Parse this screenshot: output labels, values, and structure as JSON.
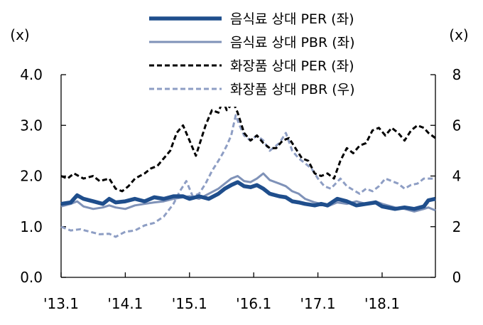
{
  "chart_data": {
    "type": "line",
    "left_axis": {
      "unit_label": "(x)",
      "ylim": [
        0,
        4
      ],
      "ticks": [
        "0.0",
        "1.0",
        "2.0",
        "3.0",
        "4.0"
      ]
    },
    "right_axis": {
      "unit_label": "(x)",
      "ylim": [
        0,
        8
      ],
      "ticks": [
        "0",
        "2",
        "4",
        "6",
        "8"
      ]
    },
    "x_axis": {
      "ticks": [
        {
          "label": "'13.1",
          "t": 2013.0
        },
        {
          "label": "'14.1",
          "t": 2014.0
        },
        {
          "label": "'15.1",
          "t": 2015.0
        },
        {
          "label": "'16.1",
          "t": 2016.0
        },
        {
          "label": "'17.1",
          "t": 2017.0
        },
        {
          "label": "'18.1",
          "t": 2018.0
        }
      ],
      "xlim": [
        2013.0,
        2018.83
      ]
    },
    "grid": false,
    "legend_position": "top-right",
    "series": [
      {
        "name": "음식료 상대 PER (좌)",
        "axis": "left",
        "color": "#1f4e8c",
        "style": "solid-thick",
        "points": [
          [
            2013.0,
            1.45
          ],
          [
            2013.15,
            1.48
          ],
          [
            2013.25,
            1.62
          ],
          [
            2013.35,
            1.55
          ],
          [
            2013.5,
            1.5
          ],
          [
            2013.65,
            1.45
          ],
          [
            2013.75,
            1.55
          ],
          [
            2013.85,
            1.48
          ],
          [
            2014.0,
            1.5
          ],
          [
            2014.15,
            1.55
          ],
          [
            2014.3,
            1.5
          ],
          [
            2014.45,
            1.58
          ],
          [
            2014.6,
            1.55
          ],
          [
            2014.75,
            1.6
          ],
          [
            2014.9,
            1.6
          ],
          [
            2015.0,
            1.55
          ],
          [
            2015.15,
            1.6
          ],
          [
            2015.3,
            1.55
          ],
          [
            2015.45,
            1.65
          ],
          [
            2015.55,
            1.75
          ],
          [
            2015.65,
            1.82
          ],
          [
            2015.75,
            1.88
          ],
          [
            2015.85,
            1.8
          ],
          [
            2015.95,
            1.78
          ],
          [
            2016.05,
            1.82
          ],
          [
            2016.15,
            1.75
          ],
          [
            2016.25,
            1.65
          ],
          [
            2016.4,
            1.6
          ],
          [
            2016.5,
            1.58
          ],
          [
            2016.6,
            1.5
          ],
          [
            2016.7,
            1.48
          ],
          [
            2016.8,
            1.45
          ],
          [
            2016.95,
            1.42
          ],
          [
            2017.05,
            1.45
          ],
          [
            2017.15,
            1.42
          ],
          [
            2017.3,
            1.55
          ],
          [
            2017.45,
            1.5
          ],
          [
            2017.6,
            1.42
          ],
          [
            2017.75,
            1.45
          ],
          [
            2017.9,
            1.48
          ],
          [
            2018.0,
            1.4
          ],
          [
            2018.2,
            1.35
          ],
          [
            2018.35,
            1.38
          ],
          [
            2018.5,
            1.35
          ],
          [
            2018.65,
            1.4
          ],
          [
            2018.72,
            1.52
          ],
          [
            2018.83,
            1.55
          ]
        ]
      },
      {
        "name": "음식료 상대 PBR (좌)",
        "axis": "left",
        "color": "#7f92b8",
        "style": "solid",
        "points": [
          [
            2013.0,
            1.4
          ],
          [
            2013.15,
            1.45
          ],
          [
            2013.25,
            1.5
          ],
          [
            2013.35,
            1.4
          ],
          [
            2013.5,
            1.35
          ],
          [
            2013.65,
            1.38
          ],
          [
            2013.75,
            1.42
          ],
          [
            2013.85,
            1.38
          ],
          [
            2014.0,
            1.35
          ],
          [
            2014.15,
            1.42
          ],
          [
            2014.3,
            1.45
          ],
          [
            2014.45,
            1.48
          ],
          [
            2014.6,
            1.5
          ],
          [
            2014.75,
            1.55
          ],
          [
            2014.9,
            1.58
          ],
          [
            2015.0,
            1.6
          ],
          [
            2015.15,
            1.55
          ],
          [
            2015.3,
            1.65
          ],
          [
            2015.45,
            1.75
          ],
          [
            2015.55,
            1.85
          ],
          [
            2015.65,
            1.95
          ],
          [
            2015.75,
            2.0
          ],
          [
            2015.85,
            1.9
          ],
          [
            2015.95,
            1.88
          ],
          [
            2016.05,
            1.95
          ],
          [
            2016.15,
            2.05
          ],
          [
            2016.25,
            1.92
          ],
          [
            2016.4,
            1.85
          ],
          [
            2016.5,
            1.8
          ],
          [
            2016.6,
            1.7
          ],
          [
            2016.7,
            1.65
          ],
          [
            2016.8,
            1.55
          ],
          [
            2016.95,
            1.48
          ],
          [
            2017.05,
            1.45
          ],
          [
            2017.15,
            1.4
          ],
          [
            2017.3,
            1.48
          ],
          [
            2017.45,
            1.45
          ],
          [
            2017.6,
            1.5
          ],
          [
            2017.75,
            1.45
          ],
          [
            2017.9,
            1.5
          ],
          [
            2018.0,
            1.45
          ],
          [
            2018.2,
            1.38
          ],
          [
            2018.35,
            1.35
          ],
          [
            2018.5,
            1.3
          ],
          [
            2018.65,
            1.35
          ],
          [
            2018.72,
            1.38
          ],
          [
            2018.83,
            1.32
          ]
        ]
      },
      {
        "name": "화장품 상대 PER (좌)",
        "axis": "left",
        "color": "#000000",
        "style": "dashed",
        "points": [
          [
            2013.0,
            2.0
          ],
          [
            2013.1,
            1.95
          ],
          [
            2013.2,
            2.05
          ],
          [
            2013.35,
            1.95
          ],
          [
            2013.5,
            2.0
          ],
          [
            2013.6,
            1.9
          ],
          [
            2013.75,
            1.95
          ],
          [
            2013.85,
            1.75
          ],
          [
            2013.95,
            1.7
          ],
          [
            2014.05,
            1.8
          ],
          [
            2014.15,
            1.95
          ],
          [
            2014.3,
            2.05
          ],
          [
            2014.4,
            2.15
          ],
          [
            2014.5,
            2.2
          ],
          [
            2014.6,
            2.35
          ],
          [
            2014.7,
            2.5
          ],
          [
            2014.8,
            2.85
          ],
          [
            2014.9,
            3.0
          ],
          [
            2015.0,
            2.7
          ],
          [
            2015.1,
            2.4
          ],
          [
            2015.15,
            2.6
          ],
          [
            2015.25,
            3.0
          ],
          [
            2015.35,
            3.3
          ],
          [
            2015.45,
            3.25
          ],
          [
            2015.52,
            3.5
          ],
          [
            2015.58,
            3.3
          ],
          [
            2015.68,
            3.45
          ],
          [
            2015.75,
            3.25
          ],
          [
            2015.85,
            2.85
          ],
          [
            2015.95,
            2.7
          ],
          [
            2016.05,
            2.8
          ],
          [
            2016.15,
            2.65
          ],
          [
            2016.25,
            2.55
          ],
          [
            2016.35,
            2.55
          ],
          [
            2016.45,
            2.7
          ],
          [
            2016.55,
            2.75
          ],
          [
            2016.65,
            2.55
          ],
          [
            2016.75,
            2.35
          ],
          [
            2016.85,
            2.3
          ],
          [
            2016.95,
            2.05
          ],
          [
            2017.05,
            2.0
          ],
          [
            2017.15,
            2.05
          ],
          [
            2017.25,
            1.95
          ],
          [
            2017.35,
            2.3
          ],
          [
            2017.45,
            2.55
          ],
          [
            2017.55,
            2.45
          ],
          [
            2017.65,
            2.6
          ],
          [
            2017.75,
            2.65
          ],
          [
            2017.85,
            2.9
          ],
          [
            2017.95,
            2.95
          ],
          [
            2018.05,
            2.8
          ],
          [
            2018.15,
            2.95
          ],
          [
            2018.25,
            2.85
          ],
          [
            2018.35,
            2.7
          ],
          [
            2018.45,
            2.9
          ],
          [
            2018.55,
            3.0
          ],
          [
            2018.65,
            2.95
          ],
          [
            2018.72,
            2.85
          ],
          [
            2018.83,
            2.75
          ]
        ]
      },
      {
        "name": "화장품 상대 PBR (우)",
        "axis": "right",
        "color": "#8e9ec4",
        "style": "dashed",
        "points": [
          [
            2013.0,
            2.0
          ],
          [
            2013.15,
            1.85
          ],
          [
            2013.3,
            1.9
          ],
          [
            2013.45,
            1.8
          ],
          [
            2013.6,
            1.7
          ],
          [
            2013.75,
            1.72
          ],
          [
            2013.85,
            1.6
          ],
          [
            2014.0,
            1.8
          ],
          [
            2014.15,
            1.85
          ],
          [
            2014.3,
            2.05
          ],
          [
            2014.45,
            2.15
          ],
          [
            2014.6,
            2.4
          ],
          [
            2014.75,
            2.9
          ],
          [
            2014.85,
            3.4
          ],
          [
            2014.95,
            3.8
          ],
          [
            2015.05,
            3.2
          ],
          [
            2015.15,
            3.3
          ],
          [
            2015.25,
            3.7
          ],
          [
            2015.35,
            4.2
          ],
          [
            2015.45,
            4.6
          ],
          [
            2015.52,
            4.9
          ],
          [
            2015.58,
            5.2
          ],
          [
            2015.65,
            5.6
          ],
          [
            2015.72,
            6.4
          ],
          [
            2015.78,
            6.0
          ],
          [
            2015.85,
            5.6
          ],
          [
            2015.95,
            5.4
          ],
          [
            2016.05,
            5.6
          ],
          [
            2016.15,
            5.4
          ],
          [
            2016.25,
            5.0
          ],
          [
            2016.4,
            5.3
          ],
          [
            2016.5,
            5.7
          ],
          [
            2016.6,
            5.0
          ],
          [
            2016.7,
            4.7
          ],
          [
            2016.8,
            4.5
          ],
          [
            2016.9,
            4.3
          ],
          [
            2017.0,
            3.9
          ],
          [
            2017.1,
            3.6
          ],
          [
            2017.2,
            3.5
          ],
          [
            2017.35,
            3.9
          ],
          [
            2017.45,
            3.6
          ],
          [
            2017.55,
            3.45
          ],
          [
            2017.65,
            3.3
          ],
          [
            2017.75,
            3.5
          ],
          [
            2017.85,
            3.4
          ],
          [
            2017.95,
            3.6
          ],
          [
            2018.05,
            3.9
          ],
          [
            2018.15,
            3.8
          ],
          [
            2018.25,
            3.7
          ],
          [
            2018.35,
            3.5
          ],
          [
            2018.45,
            3.65
          ],
          [
            2018.55,
            3.7
          ],
          [
            2018.65,
            3.9
          ],
          [
            2018.75,
            3.9
          ],
          [
            2018.83,
            3.9
          ]
        ]
      }
    ]
  }
}
